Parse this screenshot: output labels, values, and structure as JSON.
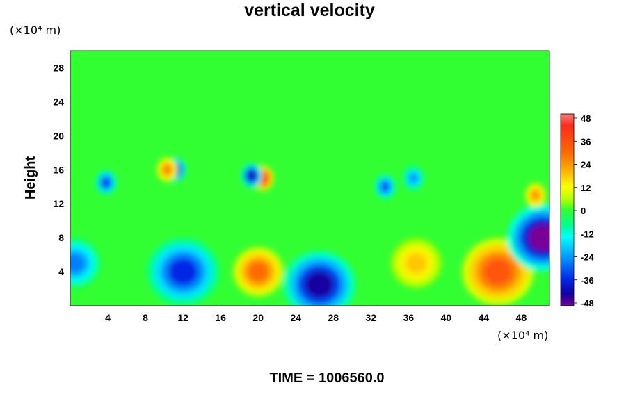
{
  "chart_data": {
    "type": "heatmap",
    "title": "vertical velocity",
    "ylabel": "Height",
    "y_unit": "(×10⁴ m)",
    "x_unit": "(×10⁴ m)",
    "xlim": [
      0,
      51
    ],
    "ylim": [
      0,
      30
    ],
    "x_ticks": [
      "4",
      "8",
      "12",
      "16",
      "20",
      "24",
      "28",
      "32",
      "36",
      "40",
      "44",
      "48"
    ],
    "y_ticks": [
      "4",
      "8",
      "12",
      "16",
      "20",
      "24",
      "28"
    ],
    "colorbar": {
      "range": [
        -48,
        48
      ],
      "ticks": [
        "48",
        "36",
        "24",
        "12",
        "0",
        "-12",
        "-24",
        "-36",
        "-48"
      ]
    },
    "background_value": 0,
    "features": [
      {
        "kind": "updraft",
        "x": 20.0,
        "y": 4.0,
        "value": 30
      },
      {
        "kind": "updraft",
        "x": 45.5,
        "y": 4.0,
        "value": 34
      },
      {
        "kind": "downdraft",
        "x": 12.0,
        "y": 4.0,
        "value": -34
      },
      {
        "kind": "downdraft",
        "x": 26.5,
        "y": 2.5,
        "value": -42
      },
      {
        "kind": "downdraft",
        "x": 50.3,
        "y": 8.0,
        "value": -48
      },
      {
        "kind": "downdraft",
        "x": 0.5,
        "y": 5.0,
        "value": -26
      },
      {
        "kind": "updraft",
        "x": 20.5,
        "y": 15.0,
        "value": 40
      },
      {
        "kind": "downdraft",
        "x": 19.3,
        "y": 15.3,
        "value": -40
      },
      {
        "kind": "downdraft",
        "x": 11.2,
        "y": 16.0,
        "value": -38
      },
      {
        "kind": "updraft",
        "x": 10.3,
        "y": 16.0,
        "value": 26
      },
      {
        "kind": "downdraft",
        "x": 3.8,
        "y": 14.5,
        "value": -32
      },
      {
        "kind": "downdraft",
        "x": 33.5,
        "y": 14.0,
        "value": -30
      },
      {
        "kind": "downdraft",
        "x": 36.5,
        "y": 15.0,
        "value": -24
      },
      {
        "kind": "updraft",
        "x": 36.8,
        "y": 5.0,
        "value": 18
      },
      {
        "kind": "updraft",
        "x": 49.5,
        "y": 13.0,
        "value": 24
      }
    ]
  },
  "footer": {
    "time_text": "TIME = 1006560.0"
  }
}
